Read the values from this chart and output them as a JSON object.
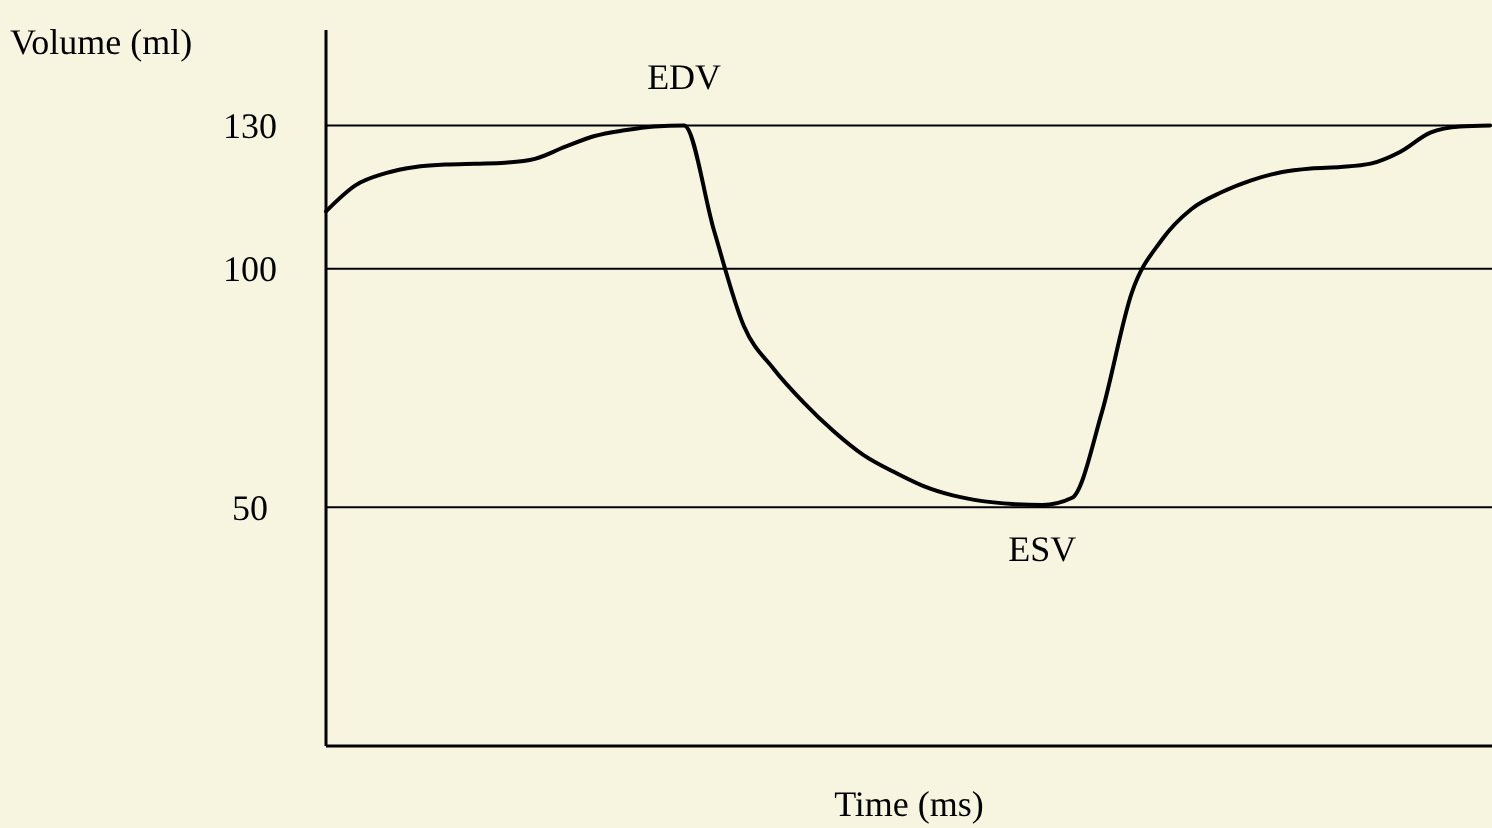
{
  "chart_data": {
    "type": "line",
    "ylabel": "Volume (ml)",
    "xlabel": "Time (ms)",
    "categories": [
      null,
      null,
      null,
      null,
      null,
      null,
      null,
      null,
      null,
      null,
      null,
      null,
      null,
      null,
      null,
      null,
      null,
      null,
      null,
      null,
      null,
      null,
      null,
      null,
      null,
      null,
      null,
      null,
      null,
      null,
      null,
      null,
      null,
      null,
      null,
      null,
      null,
      null,
      null,
      null
    ],
    "series": [
      {
        "color": "#000000",
        "values": [
          112,
          117.5,
          120,
          121.3,
          121.8,
          122,
          122.2,
          123,
          125.5,
          127.8,
          129,
          129.8,
          130,
          108,
          88,
          79,
          72,
          66,
          61,
          57.5,
          54.5,
          52.5,
          51.3,
          50.7,
          50.5,
          52,
          70,
          95,
          106,
          112.5,
          116,
          118.5,
          120.2,
          121,
          121.3,
          122,
          124.5,
          128.5,
          129.8,
          130
        ]
      }
    ],
    "ylim": [
      0,
      150
    ],
    "yticks": [
      50,
      100,
      130
    ],
    "grid": "y",
    "marker": "none",
    "line_style": "solid",
    "annotations": [
      {
        "text": "EDV",
        "y": 130
      },
      {
        "text": "ESV",
        "y": 50.5
      }
    ]
  }
}
